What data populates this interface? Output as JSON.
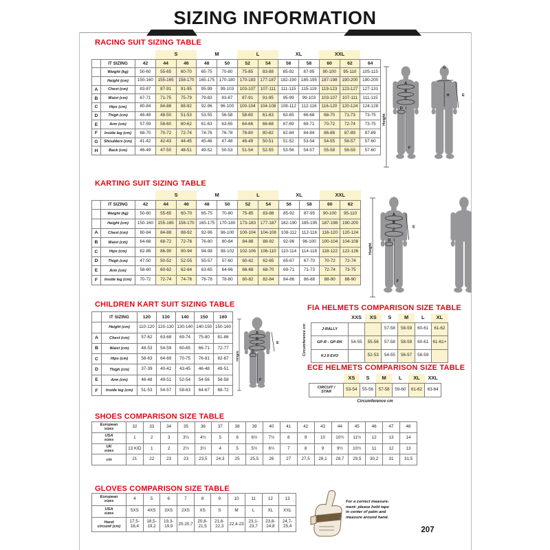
{
  "page": {
    "title": "SIZING INFORMATION",
    "page_number": "207"
  },
  "figure_labels": {
    "a": "A",
    "b": "B",
    "c": "C",
    "d": "D",
    "e": "E",
    "f": "F",
    "g": "G",
    "h": "H",
    "height": "Height"
  },
  "gloves_note": "For a correct measure-\nment: please hold tape\nin center of palm and\nmeasure around hand.",
  "tables": {
    "racing": {
      "title": "RACING SUIT SIZING TABLE",
      "groups": [
        {
          "label": "",
          "span": 3
        },
        {
          "label": "S",
          "span": 2,
          "hl": true
        },
        {
          "label": "M",
          "span": 2
        },
        {
          "label": "L",
          "span": 2,
          "hl": true
        },
        {
          "label": "XL",
          "span": 2
        },
        {
          "label": "XXL",
          "span": 2,
          "hl": true
        },
        {
          "label": "",
          "span": 1
        }
      ],
      "hl": [
        1,
        2,
        5,
        6,
        9,
        10
      ],
      "rows": [
        {
          "letter": "",
          "head": true,
          "label": "IT SIZING",
          "cells": [
            "42",
            "44",
            "46",
            "48",
            "50",
            "52",
            "54",
            "56",
            "58",
            "60",
            "62",
            "64"
          ]
        },
        {
          "letter": "",
          "label": "Weight (kg)",
          "cells": [
            "50-60",
            "55-65",
            "60-70",
            "65-75",
            "70-80",
            "75-85",
            "83-88",
            "85-92",
            "87-95",
            "90-100",
            "95-110",
            "105-115"
          ]
        },
        {
          "letter": "",
          "label": "Height (cm)",
          "cells": [
            "150-160",
            "155-165",
            "158-170",
            "165-175",
            "170-180",
            "170-183",
            "177-187",
            "182-190",
            "185-195",
            "187-198",
            "190-200",
            "190-200"
          ]
        },
        {
          "letter": "A",
          "label": "Chest (cm)",
          "cells": [
            "83-87",
            "87-91",
            "91-95",
            "95-99",
            "99-103",
            "103-107",
            "107-111",
            "111-115",
            "115-119",
            "119-123",
            "123-127",
            "127-131"
          ]
        },
        {
          "letter": "B",
          "label": "Waist (cm)",
          "cells": [
            "67-71",
            "71-75",
            "75-79",
            "79-83",
            "83-87",
            "87-91",
            "91-95",
            "95-99",
            "99-103",
            "103-107",
            "107-111",
            "111-115"
          ]
        },
        {
          "letter": "C",
          "label": "Hips (cm)",
          "cells": [
            "80-84",
            "84-88",
            "88-92",
            "92-96",
            "96-100",
            "100-104",
            "104-108",
            "108-112",
            "112-116",
            "116-120",
            "120-124",
            "124-128"
          ]
        },
        {
          "letter": "D",
          "label": "Thigh (cm)",
          "cells": [
            "46-48",
            "48-50",
            "51-53",
            "53-55",
            "56-58",
            "58-60",
            "61-63",
            "63-65",
            "66-68",
            "68-70",
            "71-73",
            "73-75"
          ]
        },
        {
          "letter": "E",
          "label": "Arm (cm)",
          "cells": [
            "57-59",
            "58-60",
            "60-62",
            "61-63",
            "63-65",
            "64-66",
            "66-68",
            "67-69",
            "69-71",
            "70-72",
            "72-74",
            "73-75"
          ]
        },
        {
          "letter": "F",
          "label": "Inside leg (cm)",
          "cells": [
            "68-70",
            "70-72",
            "72-74",
            "74-76",
            "76-78",
            "78-80",
            "80-82",
            "82-84",
            "84-84",
            "86-88",
            "87-89",
            "87-89"
          ]
        },
        {
          "letter": "G",
          "label": "Shoulders (cm)",
          "cells": [
            "41-42",
            "42-43",
            "44-45",
            "45-46",
            "47-48",
            "48-49",
            "50-51",
            "51-52",
            "53-54",
            "54-55",
            "56-57",
            "57-60"
          ]
        },
        {
          "letter": "H",
          "label": "Back (cm)",
          "cells": [
            "46-49",
            "47-50",
            "48-51",
            "49-52",
            "50-53",
            "51-54",
            "52-55",
            "53-56",
            "54-57",
            "55-58",
            "56-59",
            "57-60"
          ]
        }
      ]
    },
    "karting": {
      "title": "KARTING SUIT SIZING TABLE",
      "groups": [
        {
          "label": "",
          "span": 3
        },
        {
          "label": "S",
          "span": 2,
          "hl": true
        },
        {
          "label": "M",
          "span": 2
        },
        {
          "label": "L",
          "span": 2,
          "hl": true
        },
        {
          "label": "XL",
          "span": 2
        },
        {
          "label": "XXL",
          "span": 2,
          "hl": true
        }
      ],
      "hl": [
        1,
        2,
        5,
        6,
        9,
        10
      ],
      "rows": [
        {
          "letter": "",
          "head": true,
          "label": "IT SIZING",
          "cells": [
            "42",
            "44",
            "46",
            "48",
            "50",
            "52",
            "54",
            "56",
            "58",
            "60",
            "62"
          ]
        },
        {
          "letter": "",
          "label": "Weight (kg)",
          "cells": [
            "50-60",
            "55-65",
            "60-70",
            "65-75",
            "70-80",
            "75-85",
            "83-88",
            "85-92",
            "87-95",
            "90-100",
            "95-110"
          ]
        },
        {
          "letter": "",
          "label": "Height (cm)",
          "cells": [
            "150-160",
            "155-165",
            "158-170",
            "165-175",
            "170-180",
            "173-183",
            "177-187",
            "182-190",
            "185-195",
            "187-198",
            "190-200"
          ]
        },
        {
          "letter": "A",
          "label": "Chest (cm)",
          "cells": [
            "80-84",
            "84-88",
            "88-92",
            "92-96",
            "96-100",
            "100-104",
            "104-108",
            "108-112",
            "112-116",
            "116-120",
            "120-124"
          ]
        },
        {
          "letter": "B",
          "label": "Waist (cm)",
          "cells": [
            "64-68",
            "68-72",
            "72-76",
            "76-80",
            "80-84",
            "84-88",
            "88-92",
            "92-96",
            "96-100",
            "100-104",
            "104-108"
          ]
        },
        {
          "letter": "C",
          "label": "Hips (cm)",
          "cells": [
            "82-86",
            "86-90",
            "90-94",
            "94-98",
            "98-102",
            "102-106",
            "106-110",
            "110-114",
            "114-118",
            "118-122",
            "122-126"
          ]
        },
        {
          "letter": "D",
          "label": "Thigh (cm)",
          "cells": [
            "47-50",
            "50-52",
            "52-55",
            "55-57",
            "57-60",
            "60-62",
            "62-65",
            "65-67",
            "67-70",
            "70-72",
            "72-74"
          ]
        },
        {
          "letter": "E",
          "label": "Arm (cm)",
          "cells": [
            "58-60",
            "60-62",
            "62-64",
            "63-65",
            "64-66",
            "66-68",
            "68-70",
            "69-71",
            "71-73",
            "72-74",
            "73-75"
          ]
        },
        {
          "letter": "F",
          "label": "Inside leg (cm)",
          "cells": [
            "70-72",
            "72-74",
            "74-76",
            "76-78",
            "78-80",
            "80-82",
            "82-84",
            "84-86",
            "86-88",
            "88-90",
            "88-90"
          ]
        }
      ]
    },
    "children": {
      "title": "CHILDREN KART SUIT SIZING TABLE",
      "rows": [
        {
          "letter": "",
          "head": true,
          "label": "IT SIZING",
          "cells": [
            "120",
            "130",
            "140",
            "150",
            "160"
          ]
        },
        {
          "letter": "",
          "label": "Height (cm)",
          "cells": [
            "110-120",
            "120-130",
            "130-140",
            "140-150",
            "150-160"
          ]
        },
        {
          "letter": "A",
          "label": "Chest (cm)",
          "cells": [
            "57-62",
            "63-68",
            "69-74",
            "75-80",
            "81-86"
          ]
        },
        {
          "letter": "B",
          "label": "Waist (cm)",
          "cells": [
            "48-53",
            "54-59",
            "60-65",
            "66-71",
            "72-77"
          ]
        },
        {
          "letter": "C",
          "label": "Hips (cm)",
          "cells": [
            "58-63",
            "64-69",
            "70-75",
            "76-81",
            "82-87"
          ]
        },
        {
          "letter": "D",
          "label": "Thigh (cm)",
          "cells": [
            "37-39",
            "40-42",
            "43-45",
            "46-48",
            "49-51"
          ]
        },
        {
          "letter": "E",
          "label": "Arm (cm)",
          "cells": [
            "46-48",
            "49-51",
            "52-54",
            "54-56",
            "56-58"
          ]
        },
        {
          "letter": "F",
          "label": "Inside leg (cm)",
          "cells": [
            "51-53",
            "54-57",
            "58-63",
            "64-67",
            "68-72"
          ]
        }
      ]
    },
    "fia": {
      "title": "FIA HELMETS COMPARISON SIZE TABLE",
      "side_label": "Circumference cm",
      "columns": [
        "XXS",
        "XS",
        "S",
        "M",
        "L",
        "XL"
      ],
      "hl": [
        1,
        3,
        5
      ],
      "rows": [
        {
          "label": "J-RALLY",
          "cells": [
            "",
            "",
            "57-58",
            "58-59",
            "60-61",
            "61-62"
          ]
        },
        {
          "label": "GP-R - GP-RK",
          "cells": [
            "54-55",
            "55-56",
            "57-58",
            "58-59",
            "60-61",
            "61-61+"
          ]
        },
        {
          "label": "KJ 8 EVO",
          "cells": [
            "",
            "52-53",
            "54-55",
            "56-57",
            "58-59",
            ""
          ]
        }
      ]
    },
    "ece": {
      "title": "ECE HELMETS COMPARISON SIZE TABLE",
      "footer_label": "Circumference cm",
      "columns": [
        "XS",
        "S",
        "M",
        "L",
        "XL",
        "XXL"
      ],
      "hl": [
        0,
        2,
        4
      ],
      "rows": [
        {
          "label": "CIRCUIT /\nSTAR",
          "cells": [
            "53-54",
            "55-56",
            "57-58",
            "59-60",
            "61-62",
            "63-64"
          ]
        }
      ]
    },
    "shoes": {
      "title": "SHOES COMPARISON SIZE TABLE",
      "rows": [
        {
          "label": "European\nsizes",
          "cells": [
            "32",
            "33",
            "34",
            "35",
            "36",
            "37",
            "38",
            "39",
            "40",
            "41",
            "42",
            "43",
            "44",
            "45",
            "46",
            "47",
            "48"
          ]
        },
        {
          "label": "USA\nsizes",
          "cells": [
            "1",
            "2",
            "3",
            "3½",
            "4½",
            "5",
            "6",
            "6½",
            "7½",
            "8",
            "9",
            "10",
            "10½",
            "11½",
            "12",
            "13",
            "14"
          ]
        },
        {
          "label": "UK\nsizes",
          "cells": [
            "13 KID",
            "1",
            "2",
            "2½",
            "3½",
            "4",
            "5",
            "5½",
            "6½",
            "7",
            "8",
            "9",
            "9½",
            "10½",
            "11",
            "12",
            "13"
          ]
        },
        {
          "label": "cm",
          "cells": [
            "21",
            "22",
            "23",
            "23",
            "23,5",
            "24,3",
            "25",
            "25,5",
            "26",
            "27",
            "27,5",
            "28,1",
            "28,7",
            "29,5",
            "30,2",
            "31",
            "31,5"
          ]
        }
      ]
    },
    "gloves": {
      "title": "GLOVES COMPARISON SIZE TABLE",
      "rows": [
        {
          "label": "European\nsizes",
          "cells": [
            "4",
            "5",
            "6",
            "7",
            "8",
            "9",
            "10",
            "11",
            "12",
            "13"
          ]
        },
        {
          "label": "USA\nsizes",
          "cells": [
            "5XS",
            "4XS",
            "3XS",
            "2XS",
            "XS",
            "S",
            "M",
            "L",
            "XL",
            "XXL"
          ]
        },
        {
          "label": "Hand\ncircumf (cm)",
          "cells": [
            "17,5-18,4",
            "18,5-19,2",
            "19,3-19,9",
            "20-20,7",
            "20,8-21,5",
            "21,6-22,3",
            "22,4-23",
            "23,1-23,7",
            "23,8-24,8",
            "24,7-25,4"
          ]
        }
      ]
    }
  }
}
